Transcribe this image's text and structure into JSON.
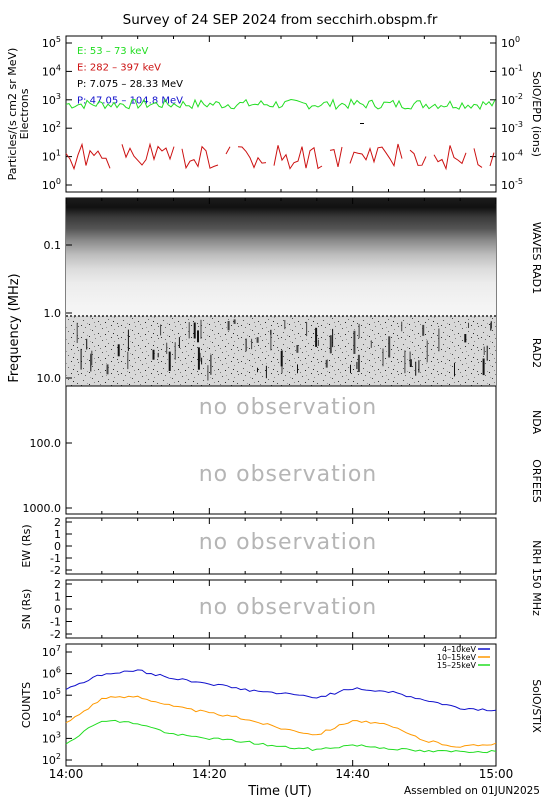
{
  "title": "Survey of 24 SEP 2024 from secchirh.obspm.fr",
  "colors": {
    "green": "#22dd22",
    "red": "#cc1111",
    "black": "#000000",
    "blue": "#1111cc",
    "orange": "#ff9900",
    "no_obs_text": "#b5b5b5"
  },
  "epd": {
    "ylabel_1": "Particles/(s cm2 sr MeV)",
    "ylabel_2": "Electrons",
    "right_label": "SolO/EPD (ions)",
    "left_ticks": [
      {
        "base": "10",
        "exp": "5"
      },
      {
        "base": "10",
        "exp": "4"
      },
      {
        "base": "10",
        "exp": "3"
      },
      {
        "base": "10",
        "exp": "2"
      },
      {
        "base": "10",
        "exp": "1"
      },
      {
        "base": "10",
        "exp": "0"
      }
    ],
    "right_ticks": [
      {
        "base": "10",
        "exp": "0"
      },
      {
        "base": "10",
        "exp": "-1"
      },
      {
        "base": "10",
        "exp": "-2"
      },
      {
        "base": "10",
        "exp": "-3"
      },
      {
        "base": "10",
        "exp": "-4"
      },
      {
        "base": "10",
        "exp": "-5"
      }
    ],
    "legend": [
      {
        "text": "E: 53 – 73 keV",
        "color": "#22dd22"
      },
      {
        "text": "E: 282 – 397 keV",
        "color": "#cc1111"
      },
      {
        "text": "P: 7.075 – 28.33 MeV",
        "color": "#000000"
      },
      {
        "text": "P: 47.05 – 104.8 MeV",
        "color": "#1111cc"
      }
    ]
  },
  "radio": {
    "ylabel": "Frequency (MHz)",
    "ticks": [
      "0.1",
      "1.0",
      "10.0",
      "100.0",
      "1000.0"
    ],
    "labels": {
      "waves": "WAVES RAD1",
      "rad2": "RAD2",
      "nda": "NDA",
      "orfees": "ORFEES"
    },
    "no_obs_1": "no observation",
    "no_obs_2": "no observation"
  },
  "nrh": {
    "ew_label": "EW (Rs)",
    "sn_label": "SN (Rs)",
    "ticks": [
      "2",
      "1",
      "0",
      "-1",
      "-2"
    ],
    "right_label": "NRH 150 MHz",
    "no_obs_1": "no observation",
    "no_obs_2": "no observation"
  },
  "stix": {
    "ylabel": "COUNTS",
    "right_label": "SolO/STIX",
    "ticks": [
      {
        "base": "10",
        "exp": "7"
      },
      {
        "base": "10",
        "exp": "6"
      },
      {
        "base": "10",
        "exp": "5"
      },
      {
        "base": "10",
        "exp": "4"
      },
      {
        "base": "10",
        "exp": "3"
      },
      {
        "base": "10",
        "exp": "2"
      }
    ],
    "legend": [
      {
        "text": "4–10keV",
        "color": "#1111cc"
      },
      {
        "text": "10–15keV",
        "color": "#ff9900"
      },
      {
        "text": "15–25keV",
        "color": "#22dd22"
      }
    ]
  },
  "xaxis": {
    "label": "Time (UT)",
    "ticks": [
      "14:00",
      "14:20",
      "14:40",
      "15:00"
    ],
    "assembled": "Assembled on 01JUN2025"
  },
  "chart_data": [
    {
      "panel": "SolO/EPD electrons",
      "type": "line",
      "yscale": "log",
      "ylim": [
        1,
        100000
      ],
      "xlim": [
        "14:00",
        "15:00"
      ],
      "series": [
        {
          "name": "E: 53 – 73 keV",
          "approx_level": 700
        },
        {
          "name": "E: 282 – 397 keV",
          "approx_level": 10
        }
      ]
    },
    {
      "panel": "STEREO WAVES RAD1 / RAD2 radio spectrogram",
      "type": "heatmap",
      "yscale": "log",
      "ylim": [
        0.02,
        16
      ],
      "xlim": [
        "14:00",
        "15:00"
      ]
    },
    {
      "panel": "SolO/STIX",
      "type": "line",
      "yscale": "log",
      "ylim": [
        100,
        10000000
      ],
      "x": [
        "14:00",
        "14:05",
        "14:10",
        "14:15",
        "14:20",
        "14:25",
        "14:30",
        "14:35",
        "14:40",
        "14:45",
        "14:50",
        "14:55",
        "15:00"
      ],
      "series": [
        {
          "name": "4–10keV",
          "values": [
            200000,
            900000,
            1400000,
            600000,
            350000,
            180000,
            120000,
            80000,
            200000,
            150000,
            60000,
            25000,
            20000
          ]
        },
        {
          "name": "10–15keV",
          "values": [
            5000,
            70000,
            90000,
            30000,
            15000,
            8000,
            3000,
            1500,
            7000,
            4000,
            800,
            400,
            600
          ]
        },
        {
          "name": "15–25keV",
          "values": [
            600,
            7000,
            5000,
            1500,
            1000,
            700,
            400,
            300,
            500,
            350,
            250,
            250,
            250
          ]
        }
      ]
    }
  ]
}
